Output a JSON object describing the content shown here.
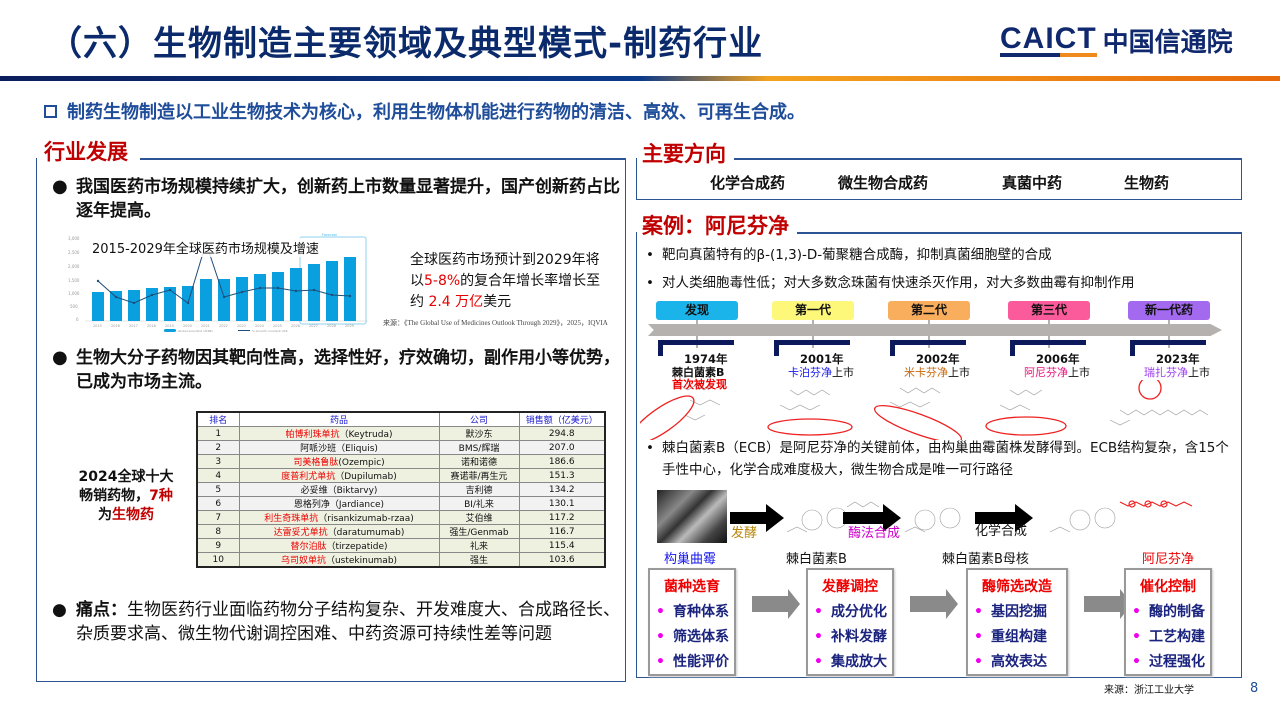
{
  "header": {
    "title": "（六）生物制造主要领域及典型模式-制药行业",
    "logo_en": "CAICT",
    "logo_cn": "中国信通院",
    "subtitle": "制药生物制造以工业生物技术为核心，利用生物体机能进行药物的清洁、高效、可再生合成。"
  },
  "left": {
    "section_title": "行业发展",
    "bullet1": "我国医药市场规模持续扩大，创新药上市数量显著提升，国产创新药占比逐年提高。",
    "chart_title": "2015-2029年全球医药市场规模及增速",
    "forecast_note": {
      "p1": "全球医药市场预计到2029年将以",
      "p2": "5-8%",
      "p3": "的复合年增长率增长至约 ",
      "p4": "2.4 万亿",
      "p5": "美元"
    },
    "chart_source": "来源：《The Global Use of Medicines Outlook Through 2029》，2025，IQVIA",
    "bullet2": "生物大分子药物因其靶向性高，选择性好，疗效确切，副作用小等优势，已成为市场主流。",
    "top10_label": {
      "l1": "2024全球十大",
      "l2": "畅销药物，",
      "l3": "7种",
      "l4": "为",
      "l5": "生物药"
    },
    "table": {
      "headers": [
        "排名",
        "药品",
        "公司",
        "销售额（亿美元）"
      ],
      "rows": [
        {
          "rank": "1",
          "cn": "帕博利珠单抗",
          "en": "（Keytruda)",
          "company": "默沙东",
          "sales": "294.8",
          "bio": true
        },
        {
          "rank": "2",
          "cn": "阿哌沙班",
          "en": "（Eliquis)",
          "company": "BMS/辉瑞",
          "sales": "207.0",
          "bio": false
        },
        {
          "rank": "3",
          "cn": "司美格鲁肽",
          "en": "(Ozempic)",
          "company": "诺和诺德",
          "sales": "186.6",
          "bio": true
        },
        {
          "rank": "4",
          "cn": "度普利尤单抗",
          "en": "（Dupilumab)",
          "company": "赛诺菲/再生元",
          "sales": "151.3",
          "bio": true
        },
        {
          "rank": "5",
          "cn": "必妥维",
          "en": "（Biktarvy)",
          "company": "吉利德",
          "sales": "134.2",
          "bio": false
        },
        {
          "rank": "6",
          "cn": "恩格列净",
          "en": "（Jardiance)",
          "company": "BI/礼来",
          "sales": "130.1",
          "bio": false
        },
        {
          "rank": "7",
          "cn": "利生奇珠单抗",
          "en": "（risankizumab-rzaa)",
          "company": "艾伯维",
          "sales": "117.2",
          "bio": true
        },
        {
          "rank": "8",
          "cn": "达雷妥尤单抗",
          "en": "（daratumumab)",
          "company": "强生/Genmab",
          "sales": "116.7",
          "bio": true
        },
        {
          "rank": "9",
          "cn": "替尔泊肽",
          "en": "（tirzepatide)",
          "company": "礼来",
          "sales": "115.4",
          "bio": true
        },
        {
          "rank": "10",
          "cn": "乌司奴单抗",
          "en": "（ustekinumab)",
          "company": "强生",
          "sales": "103.6",
          "bio": true
        }
      ]
    },
    "pain_label": "痛点：",
    "pain_text": "生物医药行业面临药物分子结构复杂、开发难度大、合成路径长、杂质要求高、微生物代谢调控困难、中药资源可持续性差等问题"
  },
  "right": {
    "directions_title": "主要方向",
    "directions": [
      "化学合成药",
      "微生物合成药",
      "真菌中药",
      "生物药"
    ],
    "case_title": "案例：阿尼芬净",
    "case_bullets": [
      "靶向真菌特有的β-(1,3)-D-葡聚糖合成酶，抑制真菌细胞壁的合成",
      "对人类细胞毒性低；对大多数念珠菌有快速杀灭作用，对大多数曲霉有抑制作用"
    ],
    "timeline": [
      {
        "tag": "发现",
        "color": "#1ab3ea",
        "year": "1974年",
        "name": "棘白菌素B",
        "name_color": "#111",
        "suffix": "",
        "extra": "首次被发现"
      },
      {
        "tag": "第一代",
        "color": "#fdf77a",
        "year": "2001年",
        "name": "卡泊芬净",
        "name_color": "#1a1aee",
        "suffix": "上市",
        "extra": ""
      },
      {
        "tag": "第二代",
        "color": "#f9ae5e",
        "year": "2002年",
        "name": "米卡芬净",
        "name_color": "#c7660a",
        "suffix": "上市",
        "extra": ""
      },
      {
        "tag": "第三代",
        "color": "#fb5b9a",
        "year": "2006年",
        "name": "阿尼芬净",
        "name_color": "#e8117a",
        "suffix": "上市",
        "extra": ""
      },
      {
        "tag": "新一代药",
        "color": "#a36af0",
        "year": "2023年",
        "name": "瑞扎芬净",
        "name_color": "#9b3cf0",
        "suffix": "上市",
        "extra": ""
      }
    ],
    "ecb_text": "棘白菌素B（ECB）是阿尼芬净的关键前体，由构巢曲霉菌株发酵得到。ECB结构复杂，含15个手性中心，化学合成难度极大，微生物合成是唯一可行路径",
    "flow": {
      "step1": "构巢曲霉",
      "arrow1": "发酵",
      "step2": "棘白菌素B",
      "arrow2": "酶法合成",
      "step3": "棘白菌素B母核",
      "arrow3": "化学合成",
      "step4": "阿尼芬净"
    },
    "stages": [
      {
        "title": "菌种选育",
        "items": [
          "育种体系",
          "筛选体系",
          "性能评价"
        ]
      },
      {
        "title": "发酵调控",
        "items": [
          "成分优化",
          "补料发酵",
          "集成放大"
        ]
      },
      {
        "title": "酶筛选改造",
        "items": [
          "基因挖掘",
          "重组构建",
          "高效表达"
        ]
      },
      {
        "title": "催化控制",
        "items": [
          "酶的制备",
          "工艺构建",
          "过程强化"
        ]
      }
    ],
    "source": "来源：浙江工业大学"
  },
  "page_number": "8",
  "chart_data": {
    "type": "bar",
    "title": "2015-2029年全球医药市场规模及增速",
    "categories": [
      "2015",
      "2016",
      "2017",
      "2018",
      "2019",
      "2020",
      "2021",
      "2022",
      "2023",
      "2024",
      "2025",
      "2026",
      "2027",
      "2028",
      "2029"
    ],
    "series": [
      {
        "name": "Global spending US$Bn",
        "type": "bar",
        "values": [
          1050,
          1100,
          1130,
          1200,
          1260,
          1300,
          1550,
          1560,
          1640,
          1740,
          1840,
          1960,
          2100,
          2220,
          2340
        ]
      },
      {
        "name": "% Growth constant US$",
        "type": "line",
        "values": [
          9,
          5,
          3.5,
          5.5,
          7,
          3.5,
          18,
          5,
          6.5,
          7.5,
          7.5,
          6.5,
          7,
          5.5,
          5
        ]
      }
    ],
    "ylabel": "Spending US$Bn",
    "ylim": [
      0,
      3000
    ],
    "y2label": "% Growth constant US$",
    "y2lim": [
      0,
      20
    ],
    "annotation": "Forecast (2025-2029)",
    "legend_position": "bottom"
  }
}
